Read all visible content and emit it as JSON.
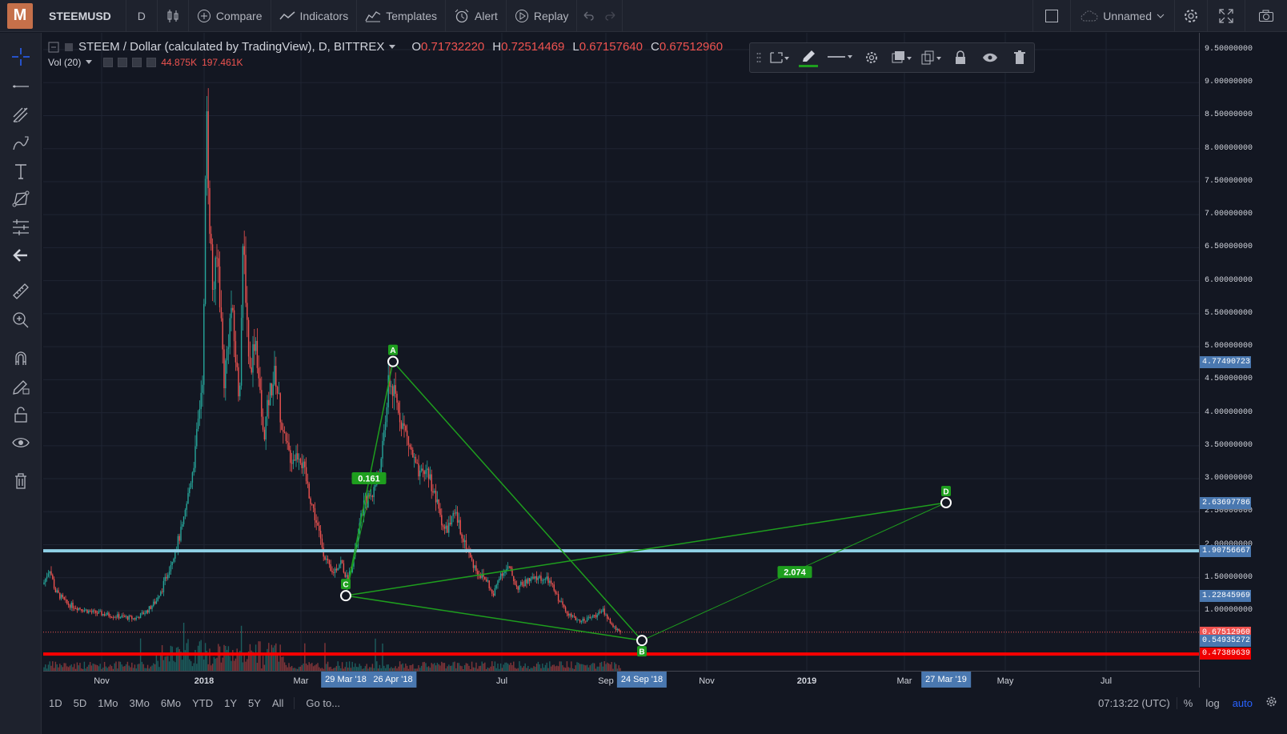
{
  "topbar": {
    "logo": "M",
    "symbol": "STEEMUSD",
    "interval": "D",
    "compare": "Compare",
    "indicators": "Indicators",
    "templates": "Templates",
    "alert": "Alert",
    "replay": "Replay",
    "layout_name": "Unnamed"
  },
  "legend": {
    "title": "STEEM / Dollar (calculated by TradingView), D, BITTREX",
    "open_key": "O",
    "open": "0.71732220",
    "high_key": "H",
    "high": "0.72514469",
    "low_key": "L",
    "low": "0.67157640",
    "close_key": "C",
    "close": "0.67512960",
    "vol_name": "Vol (20)",
    "vol_val1": "44.875K",
    "vol_val2": "197.461K"
  },
  "price_axis": {
    "ticks": [
      "9.50000000",
      "9.00000000",
      "8.50000000",
      "8.00000000",
      "7.50000000",
      "7.00000000",
      "6.50000000",
      "6.00000000",
      "5.50000000",
      "5.00000000",
      "4.50000000",
      "4.00000000",
      "3.50000000",
      "3.00000000",
      "2.50000000",
      "2.00000000",
      "1.50000000",
      "1.00000000"
    ],
    "labels": [
      {
        "text": "4.77490723",
        "color": "#4a78b0"
      },
      {
        "text": "2.63697786",
        "color": "#4a78b0"
      },
      {
        "text": "1.90756667",
        "color": "#4a78b0"
      },
      {
        "text": "1.22845969",
        "color": "#4a78b0"
      },
      {
        "text": "0.67512960",
        "color": "#ef5350"
      },
      {
        "text": "0.54935272",
        "color": "#4a78b0"
      },
      {
        "text": "0.47389639",
        "color": "#ef0000"
      }
    ]
  },
  "time_axis": {
    "ticks": [
      "Nov",
      "2018",
      "Mar",
      "Jul",
      "Sep",
      "Nov",
      "2019",
      "Mar",
      "May",
      "Jul"
    ],
    "labels": [
      "29 Mar '18",
      "26 Apr '18",
      "24 Sep '18",
      "27 Mar '19"
    ]
  },
  "pattern": {
    "points": [
      {
        "name": "A",
        "date": "26 Apr '18",
        "price": 4.77490723
      },
      {
        "name": "B",
        "date": "24 Sep '18",
        "price": 0.54935272
      },
      {
        "name": "C",
        "date": "29 Mar '18",
        "price": 1.22845969
      },
      {
        "name": "D",
        "date": "27 Mar '19",
        "price": 2.63697786
      }
    ],
    "ratio_ab": "0.161",
    "ratio_bd": "2.074"
  },
  "horizontal_lines": [
    {
      "price": 1.90756667,
      "color": "#8fd1e6"
    },
    {
      "price": 0.47389639,
      "color": "#ff0000"
    }
  ],
  "bottombar": {
    "ranges": [
      "1D",
      "5D",
      "1Mo",
      "3Mo",
      "6Mo",
      "YTD",
      "1Y",
      "5Y",
      "All"
    ],
    "goto": "Go to...",
    "clock": "07:13:22 (UTC)",
    "pct": "%",
    "log": "log",
    "auto": "auto"
  },
  "colors": {
    "up": "#26a69a",
    "down": "#ef5350",
    "pattern": "#1e9e1e",
    "background": "#131722"
  }
}
